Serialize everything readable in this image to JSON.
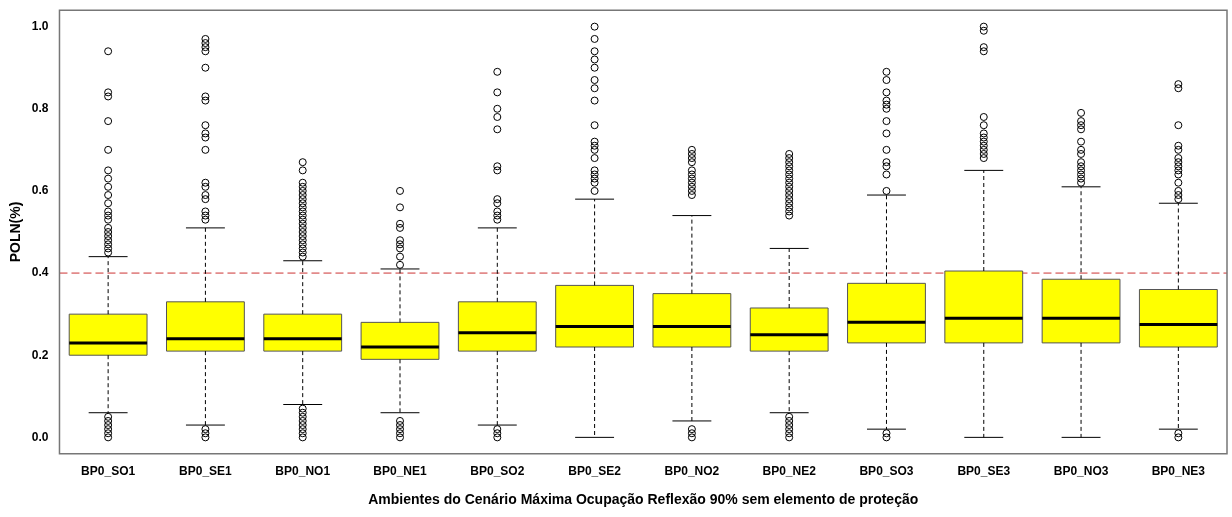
{
  "chart_data": {
    "type": "box",
    "xlabel": "Ambientes do Cenário Máxima Ocupação Reflexão 90% sem elemento de proteção",
    "ylabel": "POLN(%)",
    "categories": [
      "BP0_SO1",
      "BP0_SE1",
      "BP0_NO1",
      "BP0_NE1",
      "BP0_SO2",
      "BP0_SE2",
      "BP0_NO2",
      "BP0_NE2",
      "BP0_SO3",
      "BP0_SE3",
      "BP0_NO3",
      "BP0_NE3"
    ],
    "color": "#ffff00",
    "grid": false,
    "ylim": [
      -0.04,
      1.04
    ],
    "yticks": [
      {
        "value": 0,
        "label": "0.0"
      },
      {
        "value": 0.2,
        "label": "0.2"
      },
      {
        "value": 0.4,
        "label": "0.4"
      },
      {
        "value": 0.6,
        "label": "0.6"
      },
      {
        "value": 0.8,
        "label": "0.8"
      },
      {
        "value": 1,
        "label": "1.0"
      }
    ],
    "ref_lines": [
      {
        "axis": "y",
        "value": 0.4,
        "color": "#cc3333",
        "line_style": "dashed"
      }
    ],
    "boxes": [
      {
        "low": 0.06,
        "q1": 0.2,
        "median": 0.23,
        "q3": 0.3,
        "high": 0.44,
        "outliers": [
          0.94,
          0.84,
          0.83,
          0.77,
          0.7,
          0.65,
          0.63,
          0.61,
          0.59,
          0.57,
          0.55,
          0.54,
          0.53,
          0.51,
          0.5,
          0.49,
          0.48,
          0.47,
          0.46,
          0.45,
          0.05,
          0.04,
          0.03,
          0.02,
          0.01,
          0
        ]
      },
      {
        "low": 0.03,
        "q1": 0.21,
        "median": 0.24,
        "q3": 0.33,
        "high": 0.51,
        "outliers": [
          0.97,
          0.96,
          0.95,
          0.94,
          0.9,
          0.83,
          0.82,
          0.76,
          0.74,
          0.73,
          0.7,
          0.62,
          0.61,
          0.59,
          0.58,
          0.55,
          0.54,
          0.53,
          0.02,
          0.01,
          0
        ]
      },
      {
        "low": 0.08,
        "q1": 0.21,
        "median": 0.24,
        "q3": 0.3,
        "high": 0.43,
        "outliers": [
          0.67,
          0.65,
          0.62,
          0.61,
          0.6,
          0.59,
          0.58,
          0.57,
          0.56,
          0.55,
          0.54,
          0.53,
          0.52,
          0.51,
          0.5,
          0.49,
          0.48,
          0.47,
          0.46,
          0.45,
          0.44,
          0.07,
          0.06,
          0.05,
          0.04,
          0.03,
          0.02,
          0.01,
          0
        ]
      },
      {
        "low": 0.06,
        "q1": 0.19,
        "median": 0.22,
        "q3": 0.28,
        "high": 0.41,
        "outliers": [
          0.6,
          0.56,
          0.52,
          0.51,
          0.48,
          0.47,
          0.46,
          0.44,
          0.42,
          0.04,
          0.03,
          0.02,
          0.01,
          0
        ]
      },
      {
        "low": 0.03,
        "q1": 0.21,
        "median": 0.255,
        "q3": 0.33,
        "high": 0.51,
        "outliers": [
          0.89,
          0.84,
          0.8,
          0.78,
          0.75,
          0.66,
          0.65,
          0.58,
          0.57,
          0.55,
          0.54,
          0.53,
          0.02,
          0.01,
          0
        ]
      },
      {
        "low": 0,
        "q1": 0.22,
        "median": 0.27,
        "q3": 0.37,
        "high": 0.58,
        "outliers": [
          1,
          0.97,
          0.94,
          0.92,
          0.9,
          0.87,
          0.85,
          0.82,
          0.76,
          0.72,
          0.71,
          0.7,
          0.68,
          0.65,
          0.64,
          0.63,
          0.62,
          0.6
        ]
      },
      {
        "low": 0.04,
        "q1": 0.22,
        "median": 0.27,
        "q3": 0.35,
        "high": 0.54,
        "outliers": [
          0.7,
          0.69,
          0.68,
          0.67,
          0.65,
          0.64,
          0.63,
          0.62,
          0.61,
          0.6,
          0.59,
          0.02,
          0.01,
          0
        ]
      },
      {
        "low": 0.06,
        "q1": 0.21,
        "median": 0.25,
        "q3": 0.315,
        "high": 0.46,
        "outliers": [
          0.69,
          0.68,
          0.67,
          0.66,
          0.65,
          0.64,
          0.63,
          0.62,
          0.61,
          0.6,
          0.59,
          0.58,
          0.57,
          0.56,
          0.55,
          0.54,
          0.05,
          0.04,
          0.03,
          0.02,
          0.01,
          0
        ]
      },
      {
        "low": 0.02,
        "q1": 0.23,
        "median": 0.28,
        "q3": 0.375,
        "high": 0.59,
        "outliers": [
          0.89,
          0.87,
          0.84,
          0.82,
          0.81,
          0.8,
          0.77,
          0.74,
          0.7,
          0.67,
          0.66,
          0.64,
          0.6,
          0.01,
          0
        ]
      },
      {
        "low": 0,
        "q1": 0.23,
        "median": 0.29,
        "q3": 0.405,
        "high": 0.65,
        "outliers": [
          1,
          0.99,
          0.95,
          0.94,
          0.78,
          0.76,
          0.74,
          0.73,
          0.72,
          0.71,
          0.7,
          0.69,
          0.68
        ]
      },
      {
        "low": 0,
        "q1": 0.23,
        "median": 0.29,
        "q3": 0.385,
        "high": 0.61,
        "outliers": [
          0.79,
          0.77,
          0.76,
          0.75,
          0.72,
          0.7,
          0.69,
          0.67,
          0.66,
          0.65,
          0.64,
          0.63,
          0.62
        ]
      },
      {
        "low": 0.02,
        "q1": 0.22,
        "median": 0.275,
        "q3": 0.36,
        "high": 0.57,
        "outliers": [
          0.86,
          0.85,
          0.76,
          0.71,
          0.7,
          0.68,
          0.67,
          0.66,
          0.65,
          0.64,
          0.62,
          0.6,
          0.59,
          0.58,
          0.01,
          0
        ]
      }
    ]
  }
}
